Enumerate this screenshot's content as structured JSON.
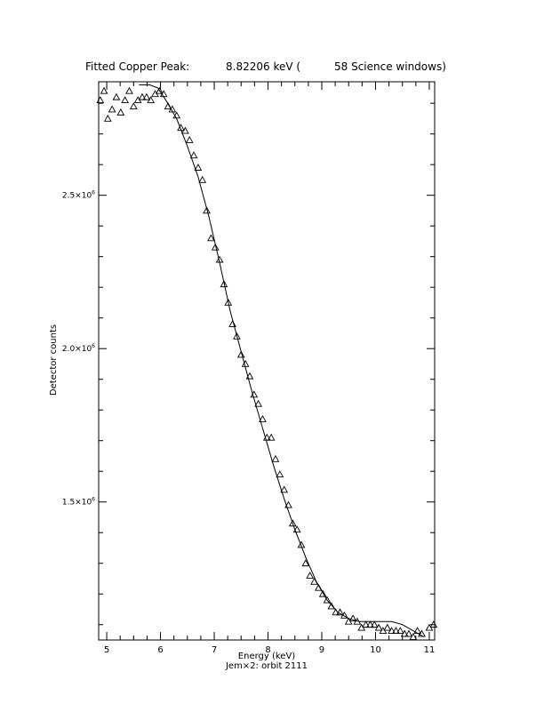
{
  "chart_data": {
    "type": "scatter",
    "title_parts": [
      "Fitted Copper Peak:",
      "8.82206 keV (",
      "58 Science windows)"
    ],
    "xlabel": "Energy (keV)",
    "ylabel": "Detector counts",
    "footer": "Jem×2: orbit 2111",
    "xlim": [
      4.85,
      11.1
    ],
    "ylim": [
      1050000,
      2870000
    ],
    "x_ticks": [
      5,
      6,
      7,
      8,
      9,
      10,
      11
    ],
    "y_ticks_major": [
      {
        "value": 1500000,
        "mantissa": "1.5×10",
        "exp": "6"
      },
      {
        "value": 2000000,
        "mantissa": "2.0×10",
        "exp": "6"
      },
      {
        "value": 2500000,
        "mantissa": "2.5×10",
        "exp": "6"
      }
    ],
    "marker": "triangle",
    "series": [
      {
        "style": "markers",
        "points": [
          [
            4.88,
            2810000
          ],
          [
            4.95,
            2840000
          ],
          [
            5.02,
            2750000
          ],
          [
            5.1,
            2780000
          ],
          [
            5.18,
            2820000
          ],
          [
            5.26,
            2770000
          ],
          [
            5.34,
            2810000
          ],
          [
            5.42,
            2840000
          ],
          [
            5.5,
            2790000
          ],
          [
            5.58,
            2810000
          ],
          [
            5.66,
            2820000
          ],
          [
            5.74,
            2820000
          ],
          [
            5.82,
            2810000
          ],
          [
            5.9,
            2830000
          ],
          [
            5.98,
            2840000
          ],
          [
            6.06,
            2830000
          ],
          [
            6.14,
            2790000
          ],
          [
            6.22,
            2780000
          ],
          [
            6.3,
            2760000
          ],
          [
            6.38,
            2720000
          ],
          [
            6.46,
            2710000
          ],
          [
            6.54,
            2680000
          ],
          [
            6.62,
            2630000
          ],
          [
            6.7,
            2590000
          ],
          [
            6.78,
            2550000
          ],
          [
            6.86,
            2450000
          ],
          [
            6.94,
            2360000
          ],
          [
            7.02,
            2330000
          ],
          [
            7.1,
            2290000
          ],
          [
            7.18,
            2210000
          ],
          [
            7.26,
            2150000
          ],
          [
            7.34,
            2080000
          ],
          [
            7.42,
            2040000
          ],
          [
            7.5,
            1980000
          ],
          [
            7.58,
            1950000
          ],
          [
            7.66,
            1910000
          ],
          [
            7.74,
            1850000
          ],
          [
            7.82,
            1820000
          ],
          [
            7.9,
            1770000
          ],
          [
            7.98,
            1710000
          ],
          [
            8.06,
            1710000
          ],
          [
            8.14,
            1640000
          ],
          [
            8.22,
            1590000
          ],
          [
            8.3,
            1540000
          ],
          [
            8.38,
            1490000
          ],
          [
            8.46,
            1430000
          ],
          [
            8.54,
            1410000
          ],
          [
            8.62,
            1360000
          ],
          [
            8.7,
            1300000
          ],
          [
            8.78,
            1260000
          ],
          [
            8.86,
            1240000
          ],
          [
            8.94,
            1220000
          ],
          [
            9.02,
            1200000
          ],
          [
            9.1,
            1180000
          ],
          [
            9.18,
            1160000
          ],
          [
            9.26,
            1140000
          ],
          [
            9.34,
            1140000
          ],
          [
            9.42,
            1130000
          ],
          [
            9.5,
            1110000
          ],
          [
            9.58,
            1120000
          ],
          [
            9.66,
            1110000
          ],
          [
            9.74,
            1090000
          ],
          [
            9.82,
            1100000
          ],
          [
            9.9,
            1100000
          ],
          [
            9.98,
            1100000
          ],
          [
            10.06,
            1090000
          ],
          [
            10.14,
            1080000
          ],
          [
            10.22,
            1090000
          ],
          [
            10.3,
            1080000
          ],
          [
            10.38,
            1080000
          ],
          [
            10.46,
            1080000
          ],
          [
            10.54,
            1070000
          ],
          [
            10.62,
            1070000
          ],
          [
            10.7,
            1060000
          ],
          [
            10.78,
            1080000
          ],
          [
            10.86,
            1070000
          ]
        ]
      },
      {
        "style": "line",
        "points": [
          [
            5.6,
            2860000
          ],
          [
            5.8,
            2860000
          ],
          [
            5.95,
            2850000
          ],
          [
            6.1,
            2810000
          ],
          [
            6.3,
            2750000
          ],
          [
            6.5,
            2660000
          ],
          [
            6.7,
            2560000
          ],
          [
            6.9,
            2430000
          ],
          [
            7.1,
            2280000
          ],
          [
            7.3,
            2120000
          ],
          [
            7.5,
            1990000
          ],
          [
            7.7,
            1860000
          ],
          [
            7.9,
            1740000
          ],
          [
            8.1,
            1620000
          ],
          [
            8.3,
            1510000
          ],
          [
            8.5,
            1410000
          ],
          [
            8.7,
            1320000
          ],
          [
            8.9,
            1240000
          ],
          [
            9.1,
            1180000
          ],
          [
            9.3,
            1140000
          ],
          [
            9.5,
            1120000
          ],
          [
            9.7,
            1110000
          ],
          [
            9.9,
            1110000
          ],
          [
            10.1,
            1110000
          ],
          [
            10.3,
            1110000
          ],
          [
            10.5,
            1100000
          ],
          [
            10.7,
            1080000
          ],
          [
            10.9,
            1060000
          ]
        ]
      }
    ],
    "right_edge_points": [
      [
        11.0,
        1090000
      ],
      [
        11.08,
        1100000
      ]
    ]
  }
}
